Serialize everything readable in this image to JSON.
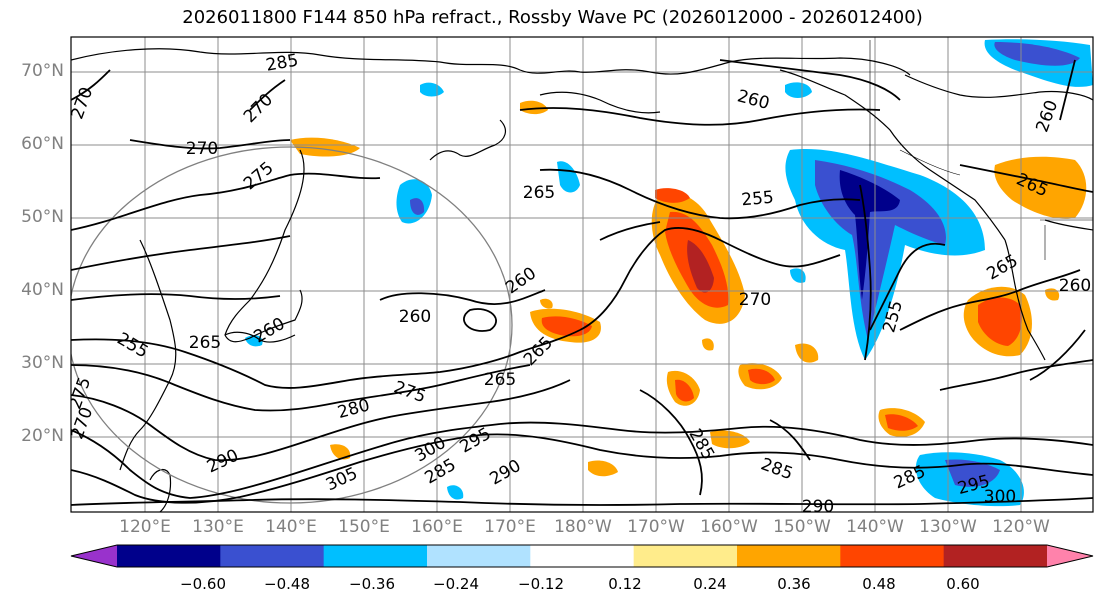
{
  "title": "2026011800 F144 850 hPa refract., Rossby Wave PC (2026012000 - 2026012400)",
  "map": {
    "lat_labels": [
      "70°N",
      "60°N",
      "50°N",
      "40°N",
      "30°N",
      "20°N"
    ],
    "lon_labels": [
      "120°E",
      "130°E",
      "140°E",
      "150°E",
      "160°E",
      "170°E",
      "180°W",
      "170°W",
      "160°W",
      "150°W",
      "140°W",
      "130°W",
      "120°W"
    ],
    "contour_labels": [
      "285",
      "270",
      "270",
      "270",
      "275",
      "265",
      "260",
      "255",
      "265",
      "260",
      "270",
      "260",
      "265",
      "260",
      "255",
      "260",
      "255",
      "265",
      "265",
      "275",
      "265",
      "280",
      "290",
      "300",
      "305",
      "295",
      "285",
      "290",
      "285",
      "285",
      "285",
      "290",
      "300",
      "295",
      "270",
      "275",
      "260"
    ]
  },
  "colorbar": {
    "colors": [
      "#9932cc",
      "#00008b",
      "#3a50d0",
      "#00bfff",
      "#b0e2ff",
      "#ffffff",
      "#ffec8b",
      "#ffa500",
      "#ff4500",
      "#b22222",
      "#ff82ab"
    ],
    "ticks": [
      "−0.60",
      "−0.48",
      "−0.36",
      "−0.24",
      "−0.12",
      "0.12",
      "0.24",
      "0.36",
      "0.48",
      "0.60"
    ]
  }
}
